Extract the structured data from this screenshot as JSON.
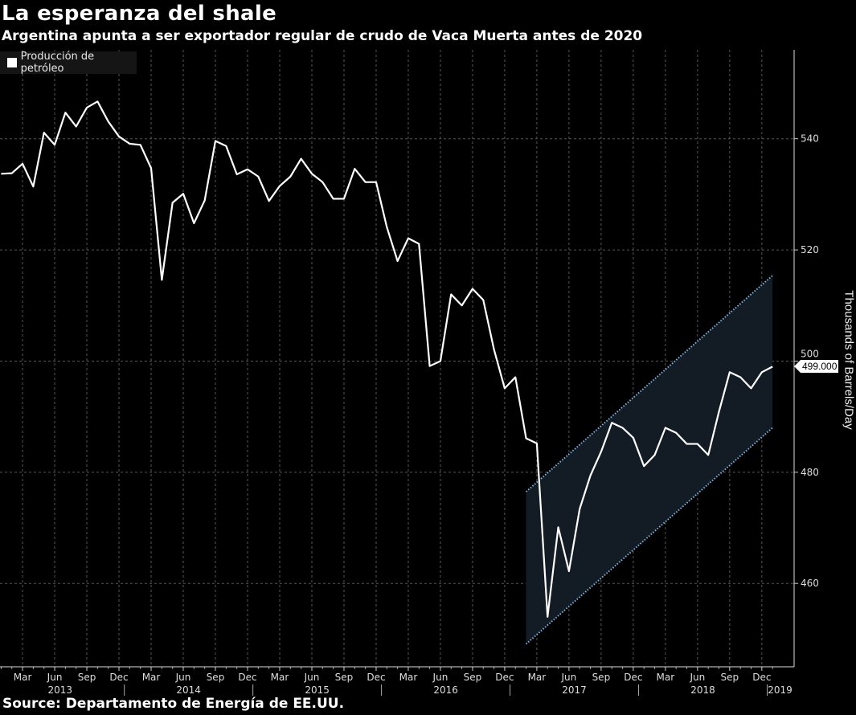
{
  "header": {
    "title": "La esperanza del shale",
    "subtitle": "Argentina apunta a ser exportador regular de crudo de Vaca Muerta antes de 2020"
  },
  "footer": {
    "source": "Source: Departamento de Energía de EE.UU."
  },
  "colors": {
    "background": "#000000",
    "line": "#ffffff",
    "channel_fill": "#131b24",
    "channel_line": "#7fb2e0",
    "grid": "#555555"
  },
  "chart_data": {
    "type": "line",
    "title": "La esperanza del shale",
    "subtitle": "Argentina apunta a ser exportador regular de crudo de Vaca Muerta antes de 2020",
    "ylabel": "Thousands of Barrels/Day",
    "y_axis_side": "right",
    "ylim": [
      445,
      556
    ],
    "yticks": [
      460,
      480,
      500,
      520,
      540
    ],
    "xlim": [
      "2013-01",
      "2019-02"
    ],
    "grid": true,
    "legend_placement": "top-left",
    "x_quarter_labels": [
      "Mar",
      "Jun",
      "Sep",
      "Dec"
    ],
    "x_years": [
      "2013",
      "2014",
      "2015",
      "2016",
      "2017",
      "2018",
      "2019"
    ],
    "last_value_label": "499.000",
    "series": [
      {
        "name": "Producción de petróleo",
        "start": "2013-01",
        "frequency": "monthly",
        "values": [
          533.7,
          533.8,
          535.5,
          531.4,
          541.1,
          538.9,
          544.7,
          542.2,
          545.6,
          546.7,
          543.1,
          540.4,
          539.1,
          538.9,
          534.7,
          514.6,
          528.5,
          530.1,
          524.8,
          528.9,
          539.6,
          538.7,
          533.6,
          534.5,
          533.2,
          528.8,
          531.5,
          533.2,
          536.4,
          533.7,
          532.2,
          529.2,
          529.2,
          534.6,
          532.2,
          532.2,
          524.1,
          518.0,
          522.1,
          521.1,
          499.1,
          500.0,
          512.0,
          510.0,
          513.0,
          511.0,
          502.1,
          495.1,
          497.1,
          486.1,
          485.2,
          454.0,
          470.1,
          462.2,
          473.4,
          479.4,
          483.7,
          488.9,
          488.0,
          486.2,
          481.1,
          483.1,
          488.0,
          487.1,
          485.1,
          485.1,
          483.1,
          490.9,
          498.0,
          497.1,
          495.1,
          498.0,
          499.0
        ]
      }
    ],
    "channel": {
      "start": "2017-02",
      "end": "2019-01",
      "upper": [
        476.5,
        515.4
      ],
      "lower": [
        449.1,
        488.0
      ]
    }
  }
}
